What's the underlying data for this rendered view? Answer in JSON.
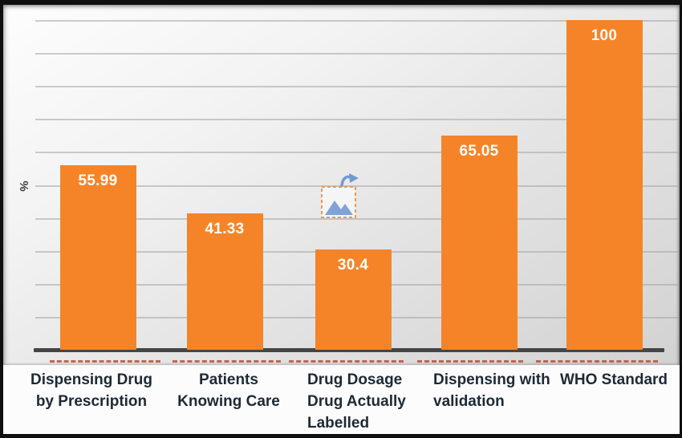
{
  "chart_data": {
    "type": "bar",
    "title": "",
    "xlabel": "",
    "ylabel": "%",
    "categories": [
      [
        "Dispensing Drug",
        "by Prescription"
      ],
      [
        "Patients",
        "Knowing Care"
      ],
      [
        "Drug Dosage",
        "Drug Actually",
        "Labelled"
      ],
      [
        "Dispensing with",
        "validation"
      ],
      [
        "WHO Standard"
      ]
    ],
    "values": [
      55.99,
      41.33,
      30.4,
      65.05,
      100
    ],
    "value_labels": [
      "55.99",
      "41.33",
      "30.4",
      "65.05",
      "100"
    ],
    "ylim": [
      0,
      100
    ],
    "gridline_step": 10,
    "grid": "horizontal",
    "legend": "none",
    "value_labels_position": "inside-top"
  },
  "colors": {
    "bar": "#f58428",
    "value_label": "#ffffff",
    "category_label": "#1e2936",
    "axis_line": "#454545",
    "gridline": "#a4a4a4",
    "red_dash_marks": "#c05039",
    "placeholder_blue": "#6f9bd1",
    "placeholder_border_orange": "#e49b5f",
    "frame": "#0f0f0f"
  },
  "icons": {
    "image_placeholder": "broken-linked-image-placeholder-with-refresh-arrow"
  }
}
